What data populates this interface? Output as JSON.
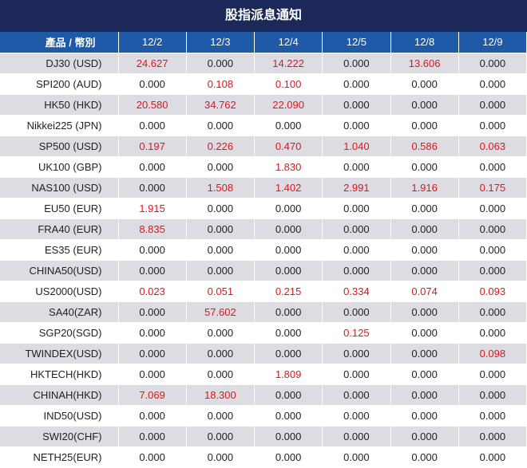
{
  "title": "股指派息通知",
  "table": {
    "header": [
      "產品 / 幣別",
      "12/2",
      "12/3",
      "12/4",
      "12/5",
      "12/8",
      "12/9"
    ],
    "rows": [
      [
        "DJ30 (USD)",
        "24.627",
        "0.000",
        "14.222",
        "0.000",
        "13.606",
        "0.000"
      ],
      [
        "SPI200 (AUD)",
        "0.000",
        "0.108",
        "0.100",
        "0.000",
        "0.000",
        "0.000"
      ],
      [
        "HK50 (HKD)",
        "20.580",
        "34.762",
        "22.090",
        "0.000",
        "0.000",
        "0.000"
      ],
      [
        "Nikkei225 (JPN)",
        "0.000",
        "0.000",
        "0.000",
        "0.000",
        "0.000",
        "0.000"
      ],
      [
        "SP500 (USD)",
        "0.197",
        "0.226",
        "0.470",
        "1.040",
        "0.586",
        "0.063"
      ],
      [
        "UK100 (GBP)",
        "0.000",
        "0.000",
        "1.830",
        "0.000",
        "0.000",
        "0.000"
      ],
      [
        "NAS100 (USD)",
        "0.000",
        "1.508",
        "1.402",
        "2.991",
        "1.916",
        "0.175"
      ],
      [
        "EU50 (EUR)",
        "1.915",
        "0.000",
        "0.000",
        "0.000",
        "0.000",
        "0.000"
      ],
      [
        "FRA40 (EUR)",
        "8.835",
        "0.000",
        "0.000",
        "0.000",
        "0.000",
        "0.000"
      ],
      [
        "ES35 (EUR)",
        "0.000",
        "0.000",
        "0.000",
        "0.000",
        "0.000",
        "0.000"
      ],
      [
        "CHINA50(USD)",
        "0.000",
        "0.000",
        "0.000",
        "0.000",
        "0.000",
        "0.000"
      ],
      [
        "US2000(USD)",
        "0.023",
        "0.051",
        "0.215",
        "0.334",
        "0.074",
        "0.093"
      ],
      [
        "SA40(ZAR)",
        "0.000",
        "57.602",
        "0.000",
        "0.000",
        "0.000",
        "0.000"
      ],
      [
        "SGP20(SGD)",
        "0.000",
        "0.000",
        "0.000",
        "0.125",
        "0.000",
        "0.000"
      ],
      [
        "TWINDEX(USD)",
        "0.000",
        "0.000",
        "0.000",
        "0.000",
        "0.000",
        "0.098"
      ],
      [
        "HKTECH(HKD)",
        "0.000",
        "0.000",
        "1.809",
        "0.000",
        "0.000",
        "0.000"
      ],
      [
        "CHINAH(HKD)",
        "7.069",
        "18.300",
        "0.000",
        "0.000",
        "0.000",
        "0.000"
      ],
      [
        "IND50(USD)",
        "0.000",
        "0.000",
        "0.000",
        "0.000",
        "0.000",
        "0.000"
      ],
      [
        "SWI20(CHF)",
        "0.000",
        "0.000",
        "0.000",
        "0.000",
        "0.000",
        "0.000"
      ],
      [
        "NETH25(EUR)",
        "0.000",
        "0.000",
        "0.000",
        "0.000",
        "0.000",
        "0.000"
      ]
    ]
  }
}
